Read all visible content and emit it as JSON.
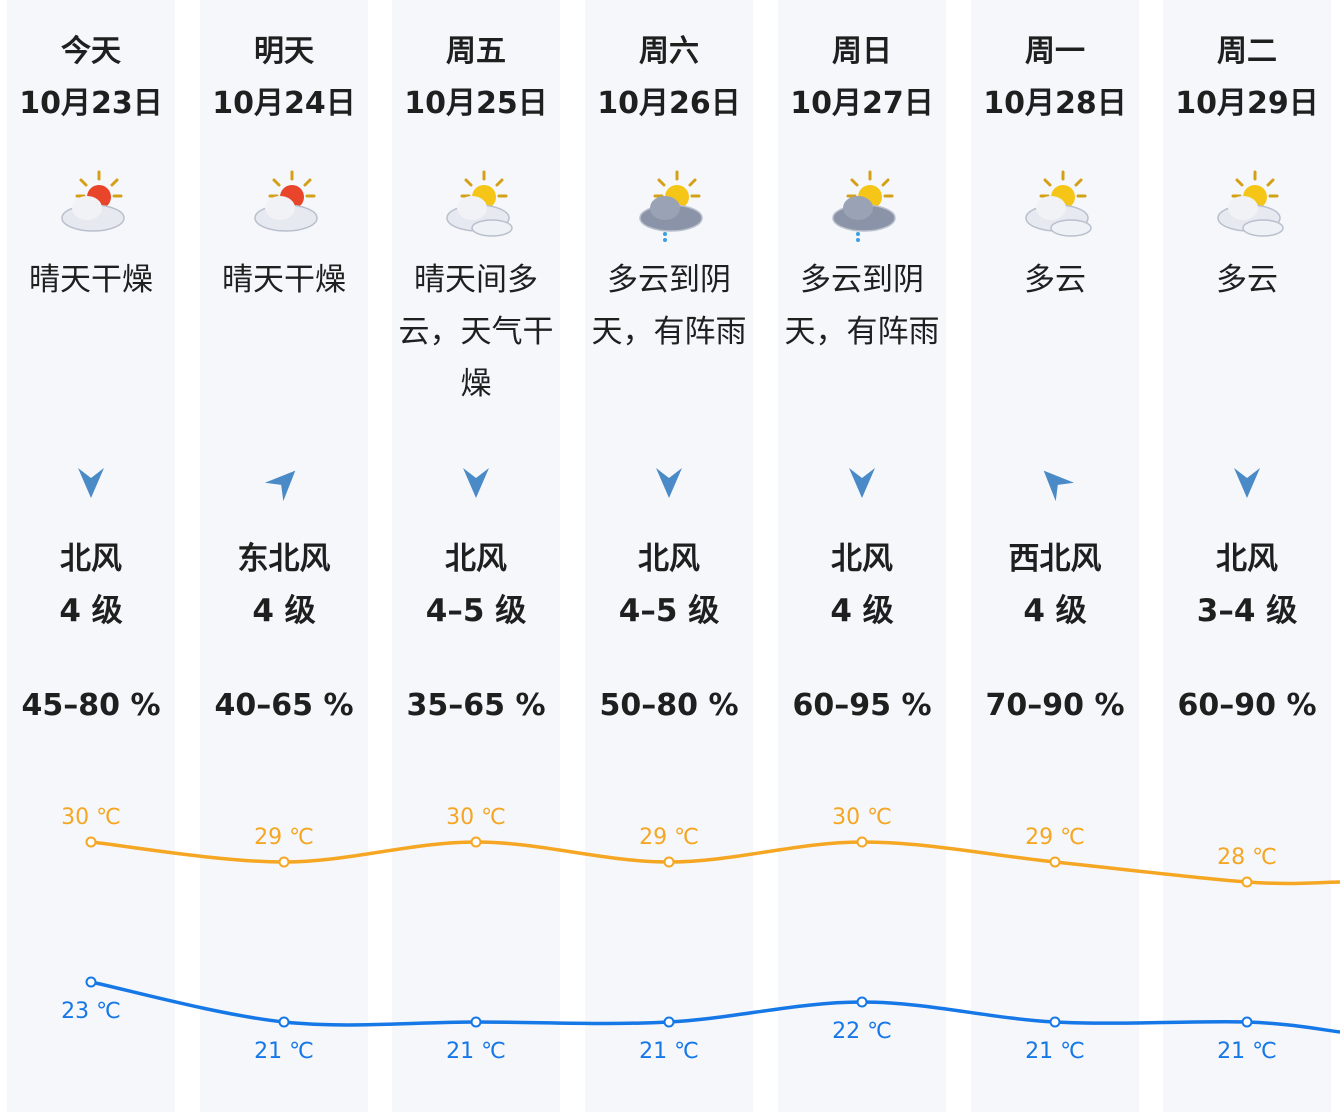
{
  "days": [
    {
      "day": "今天",
      "date": "10月23日",
      "icon": "sun-behind-cloud-icon",
      "desc": "晴天干燥",
      "wind_dir": "北风",
      "wind_level": "4 级",
      "humidity": "45–80 %",
      "arrow_deg": 0
    },
    {
      "day": "明天",
      "date": "10月24日",
      "icon": "sun-behind-cloud-icon",
      "desc": "晴天干燥",
      "wind_dir": "东北风",
      "wind_level": "4 级",
      "humidity": "40–65 %",
      "arrow_deg": -135
    },
    {
      "day": "周五",
      "date": "10月25日",
      "icon": "partly-cloudy-icon",
      "desc": "晴天间多云，天气干燥",
      "wind_dir": "北风",
      "wind_level": "4–5 级",
      "humidity": "35–65 %",
      "arrow_deg": 0
    },
    {
      "day": "周六",
      "date": "10月26日",
      "icon": "cloud-rain-icon",
      "desc": "多云到阴天，有阵雨",
      "wind_dir": "北风",
      "wind_level": "4–5 级",
      "humidity": "50–80 %",
      "arrow_deg": 0
    },
    {
      "day": "周日",
      "date": "10月27日",
      "icon": "cloud-rain-icon",
      "desc": "多云到阴天，有阵雨",
      "wind_dir": "北风",
      "wind_level": "4 级",
      "humidity": "60–95 %",
      "arrow_deg": 0
    },
    {
      "day": "周一",
      "date": "10月28日",
      "icon": "partly-cloudy-icon",
      "desc": "多云",
      "wind_dir": "西北风",
      "wind_level": "4 级",
      "humidity": "70–90 %",
      "arrow_deg": 135
    },
    {
      "day": "周二",
      "date": "10月29日",
      "icon": "partly-cloudy-icon",
      "desc": "多云",
      "wind_dir": "北风",
      "wind_level": "3–4 级",
      "humidity": "60–90 %",
      "arrow_deg": 0
    }
  ],
  "colors": {
    "high": "#f5a623",
    "low": "#1677e6",
    "column_bg": "#f5f7fb"
  },
  "chart_data": {
    "type": "line",
    "categories": [
      "10月23日",
      "10月24日",
      "10月25日",
      "10月26日",
      "10月27日",
      "10月28日",
      "10月29日"
    ],
    "series": [
      {
        "values": [
          30,
          29,
          30,
          29,
          30,
          29,
          28
        ],
        "labels": [
          "30 ℃",
          "29 ℃",
          "30 ℃",
          "29 ℃",
          "30 ℃",
          "29 ℃",
          "28 ℃"
        ]
      },
      {
        "values": [
          23,
          21,
          21,
          21,
          22,
          21,
          21
        ],
        "labels": [
          "23 ℃",
          "21 ℃",
          "21 ℃",
          "21 ℃",
          "22 ℃",
          "21 ℃",
          "21 ℃"
        ]
      }
    ]
  }
}
